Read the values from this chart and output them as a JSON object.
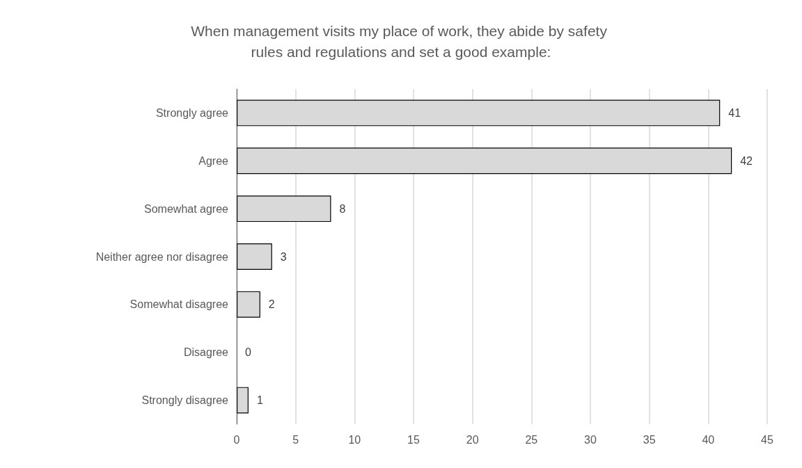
{
  "chart_data": {
    "type": "bar",
    "orientation": "horizontal",
    "title": "When management visits my place of work, they abide by safety rules and regulations and set a good example:",
    "categories": [
      "Strongly agree",
      "Agree",
      "Somewhat agree",
      "Neither agree nor disagree",
      "Somewhat disagree",
      "Disagree",
      "Strongly disagree"
    ],
    "values": [
      41,
      42,
      8,
      3,
      2,
      0,
      1
    ],
    "color": "#d9d9d9",
    "xlim": [
      0,
      45
    ],
    "xticks": [
      0,
      5,
      10,
      15,
      20,
      25,
      30,
      35,
      40,
      45
    ],
    "grid": "x",
    "data_labels": true
  }
}
